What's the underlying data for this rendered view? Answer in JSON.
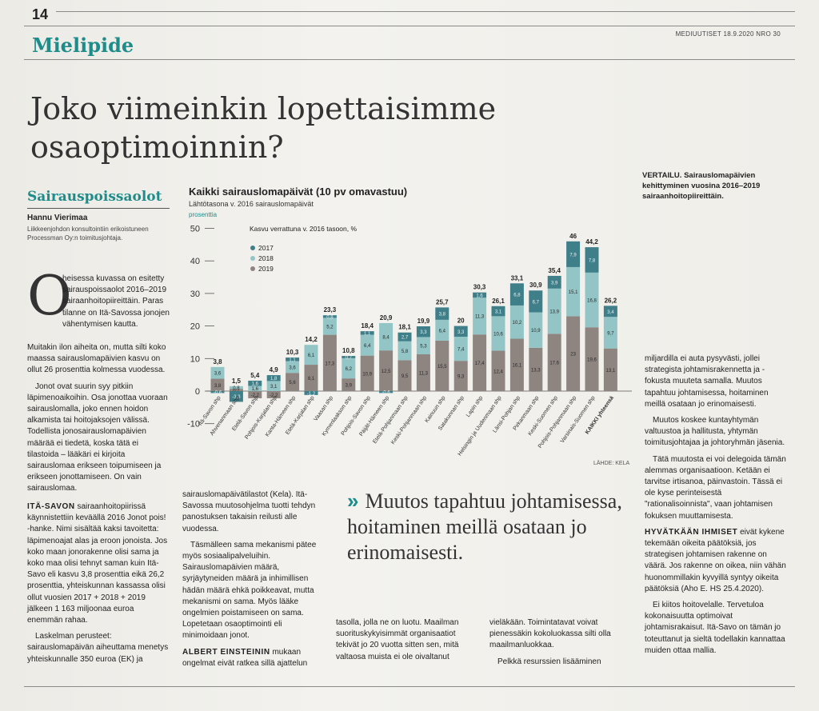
{
  "page": {
    "number": "14",
    "masthead": "MEDIUUTISET 18.9.2020 NRO 30",
    "section": "Mielipide"
  },
  "article": {
    "headline": "Joko viimeinkin lopettaisimme osaoptimoinnin?",
    "subsection": "Sairauspoissaolot",
    "author": "Hannu Vierimaa",
    "author_desc": "Liikkeenjohdon konsultointiin erikoistuneen Processman Oy:n toimitusjohtaja.",
    "dropcap": "O",
    "lead": "heisessa kuvassa on esitetty sairauspoissaolot 2016–2019 sairaanhoitopiireittäin. Paras tilanne on Itä-Savossa jonojen vähentymisen kautta.",
    "col1_p1": "Muitakin ilon aiheita on, mutta silti koko maassa sairauslomapäivien kasvu on ollut 26 prosenttia kolmessa vuodessa.",
    "col1_p2": "Jonot ovat suurin syy pitkiin läpimenoaikoihin. Osa jonottaa vuoraan sairauslomalla, joko ennen hoidon alkamista tai hoitojaksojen välissä. Todellista jonosairauslomapäivien määrää ei tiedetä, koska tätä ei tilastoida – lääkäri ei kirjoita sairauslomaa erikseen toipumiseen ja erikseen jonottamiseen. On vain sairauslomaa.",
    "col1_p3_lead": "ITÄ-SAVON",
    "col1_p3": "sairaanhoitopiirissä käynnistettiin keväällä 2016 Jonot pois! -hanke. Nimi sisältää kaksi tavoitetta: läpimenoajat alas ja eroon jonoista. Jos koko maan jonorakenne olisi sama ja koko maa olisi tehnyt saman kuin Itä-Savo eli kasvu 3,8 prosenttia eikä 26,2 prosenttia, yhteiskunnan kassassa olisi ollut vuosien 2017 + 2018 + 2019 jälkeen 1 163 miljoonaa euroa enemmän rahaa.",
    "col1_p4": "Laskelman perusteet: sairauslomapäivän aiheuttama menetys yhteiskunnalle 350 euroa (EK) ja",
    "col2_p1": "sairauslomapäivätilastot (Kela). Itä-Savossa muutosohjelma tuotti tehdyn panostuksen takaisin reilusti alle vuodessa.",
    "col2_p2": "Täsmälleen sama mekanismi pätee myös sosiaalipalveluihin. Sairauslomapäivien määrä, syrjäytyneiden määrä ja inhimillisen hädän määrä ehkä poikkeavat, mutta mekanismi on sama. Myös lääke ongelmien poistamiseen on sama. Lopetetaan osaoptimointi eli minimoidaan jonot.",
    "col2_p3_lead": "ALBERT EINSTEININ",
    "col2_p3": "mukaan ongelmat eivät ratkea sillä ajattelun",
    "pullquote": "Muutos tapahtuu johtamisessa, hoitaminen meillä osataan jo erinomaisesti.",
    "pullquote_mark": "»",
    "col3": "tasolla, jolla ne on luotu. Maailman suorituskykyisimmät organisaatiot tekivät jo 20 vuotta sitten sen, mitä valtaosa muista ei ole oivaltanut",
    "col4": "vieläkään. Toimintatavat voivat pienessäkin kokoluokassa silti olla maailmanluokkaa.",
    "col4_p2": "Pelkkä resurssien lisääminen",
    "col5_p1": "miljardilla ei auta pysyvästi, jollei strategista johtamisrakennetta ja -fokusta muuteta samalla. Muutos tapahtuu johtamisessa, hoitaminen meillä osataan jo erinomaisesti.",
    "col5_p2": "Muutos koskee kuntayhtymän valtuustoa ja hallitusta, yhtymän toimitusjohtajaa ja johtoryhmän jäsenia.",
    "col5_p3": "Tätä muutosta ei voi delegoida tämän alemmas organisaatioon. Ketään ei tarvitse irtisanoa, päinvastoin. Tässä ei ole kyse perinteisestä \"rationalisoinnista\", vaan johtamisen fokuksen muuttamisesta.",
    "col5_p4_lead": "HYVÄTKÄÄN IHMISET",
    "col5_p4": "eivät kykene tekemään oikeita päätöksiä, jos strategisen johtamisen rakenne on väärä. Jos rakenne on oikea, niin vähän huonommillakin kyvyillä syntyy oikeita päätöksiä (Aho E. HS 25.4.2020).",
    "col5_p5": "Ei kiitos hoitovelalle. Tervetuloa kokonaisuutta optimoivat johtamisrakaisut. Itä-Savo on tämän jo toteuttanut ja sieltä todellakin kannattaa muiden ottaa mallia."
  },
  "chart_caption": {
    "lead": "VERTAILU.",
    "text": "Sairauslomapäivien kehittyminen vuosina 2016–2019 sairaanhoitopiireittäin."
  },
  "chart_data": {
    "type": "bar",
    "title": "Kaikki sairauslomapäivät (10 pv omavastuu)",
    "subtitle": "Lähtötasona v. 2016 sairauslomapäivät",
    "ylabel": "prosenttia",
    "legend_title": "Kasvu verrattuna v. 2016 tasoon, %",
    "source": "LÄHDE: KELA",
    "ylim": [
      -10,
      50
    ],
    "yticks": [
      -10,
      0,
      10,
      20,
      30,
      40,
      50
    ],
    "colors": {
      "2017": "#3f7f8a",
      "2018": "#93c5c6",
      "2019": "#8e8581"
    },
    "categories": [
      "Itä-Savon shp",
      "Ahvenanmaan shp",
      "Etelä-Savon shp",
      "Pohjois-Karjalan shp",
      "Kanta-Hämeen shp",
      "Etelä-Karjalan shp",
      "Vaasan shp",
      "Kymenlaakson shp",
      "Pohjois-Savon shp",
      "Päijät-Hämeen shp",
      "Etelä-Pohjanmaan shp",
      "Keski-Pohjanmaan shp",
      "Kainuun shp",
      "Satakunnan shp",
      "Lapin shp",
      "Helsingin ja Uudenmaan shp",
      "Länsi-Pohjan shp",
      "Pirkanmaan shp",
      "Keski-Suomen shp",
      "Pohjois-Pohjanmaan shp",
      "Varsinais-Suomen shp",
      "KAIKKI yhteensä"
    ],
    "totals": [
      3.8,
      1.5,
      5.4,
      4.9,
      10.3,
      14.2,
      23.3,
      10.8,
      18.4,
      20.9,
      18.1,
      19.9,
      25.7,
      20,
      30.3,
      26.1,
      33.1,
      30.9,
      35.4,
      46,
      44.2,
      26.2
    ],
    "series": [
      {
        "name": "2017",
        "values": [
          -0.6,
          -3.3,
          1.6,
          1.8,
          1.1,
          -1.2,
          0.8,
          0.7,
          1.1,
          -0.6,
          2.7,
          3.3,
          3.8,
          3.3,
          1.6,
          3.1,
          6.8,
          6.7,
          3.9,
          7.9,
          7.8,
          3.4
        ]
      },
      {
        "name": "2018",
        "values": [
          3.6,
          0.8,
          1.6,
          3.1,
          3.6,
          6.1,
          5.2,
          6.2,
          6.4,
          8.4,
          5.8,
          5.3,
          6.4,
          7.4,
          11.3,
          10.6,
          10.2,
          10.9,
          13.9,
          15.1,
          16.8,
          9.7
        ]
      },
      {
        "name": "2019",
        "values": [
          3.8,
          0.7,
          -2.2,
          -2.2,
          5.6,
          8.1,
          17.3,
          3.9,
          10.9,
          12.5,
          9.5,
          11.3,
          15.5,
          9.3,
          17.4,
          12.4,
          16.1,
          13.3,
          17.6,
          23,
          19.6,
          13.1
        ]
      }
    ]
  }
}
